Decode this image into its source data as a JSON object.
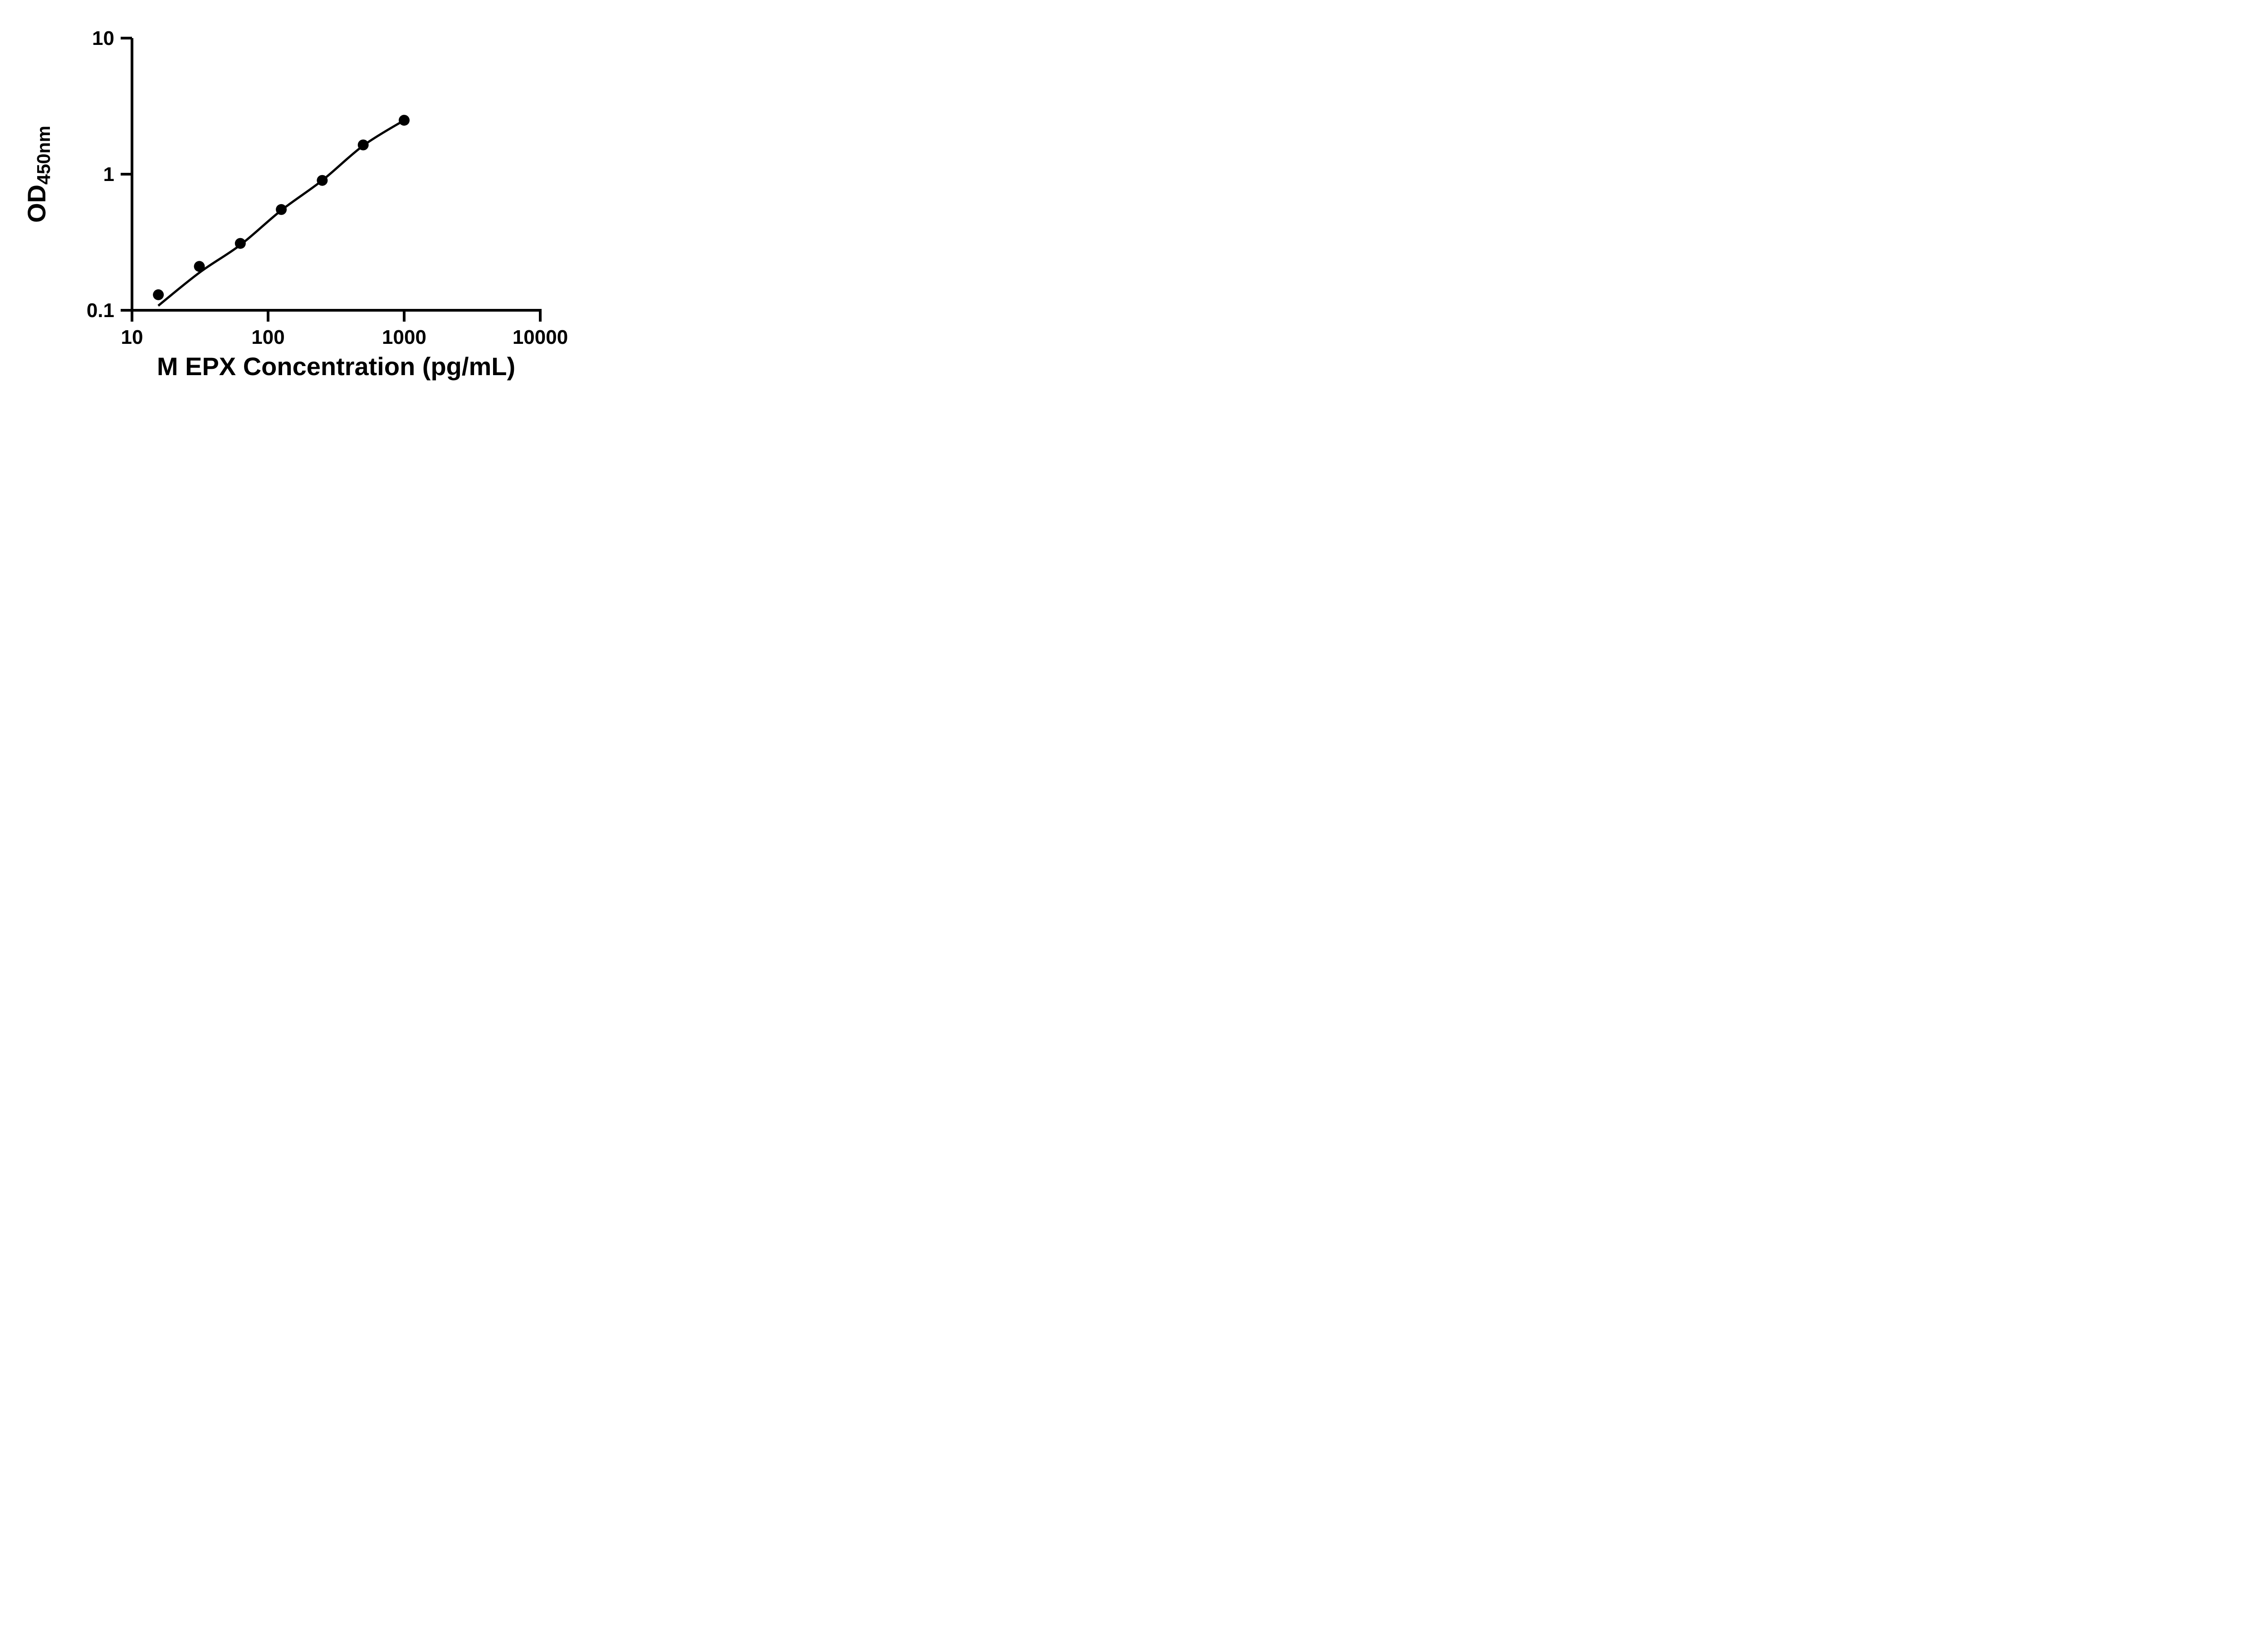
{
  "figure": {
    "background": "#ffffff",
    "ink_color": "#000000"
  },
  "chart_data": {
    "type": "scatter",
    "title": "",
    "xlabel": "M EPX Concentration (pg/mL)",
    "ylabel_main": "OD",
    "ylabel_sub": "450nm",
    "x_scale": "log",
    "y_scale": "log",
    "xlim": [
      10,
      10000
    ],
    "ylim": [
      0.1,
      10
    ],
    "grid": false,
    "legend": null,
    "marker_color": "#000000",
    "line_color": "#000000",
    "x_ticks": [
      {
        "v": 10,
        "label": "10"
      },
      {
        "v": 100,
        "label": "100"
      },
      {
        "v": 1000,
        "label": "1000"
      },
      {
        "v": 10000,
        "label": "10000"
      }
    ],
    "y_ticks": [
      {
        "v": 0.1,
        "label": "0.1"
      },
      {
        "v": 1,
        "label": "1"
      },
      {
        "v": 10,
        "label": "10"
      }
    ],
    "points": [
      {
        "x": 15.625,
        "y": 0.13
      },
      {
        "x": 31.25,
        "y": 0.21
      },
      {
        "x": 62.5,
        "y": 0.31
      },
      {
        "x": 125,
        "y": 0.55
      },
      {
        "x": 250,
        "y": 0.9
      },
      {
        "x": 500,
        "y": 1.64
      },
      {
        "x": 1000,
        "y": 2.49
      }
    ],
    "fit_curve": [
      [
        15.6,
        0.108
      ],
      [
        31.25,
        0.189
      ],
      [
        62.5,
        0.302
      ],
      [
        125,
        0.543
      ],
      [
        250,
        0.9
      ],
      [
        500,
        1.62
      ],
      [
        1000,
        2.49
      ]
    ]
  }
}
